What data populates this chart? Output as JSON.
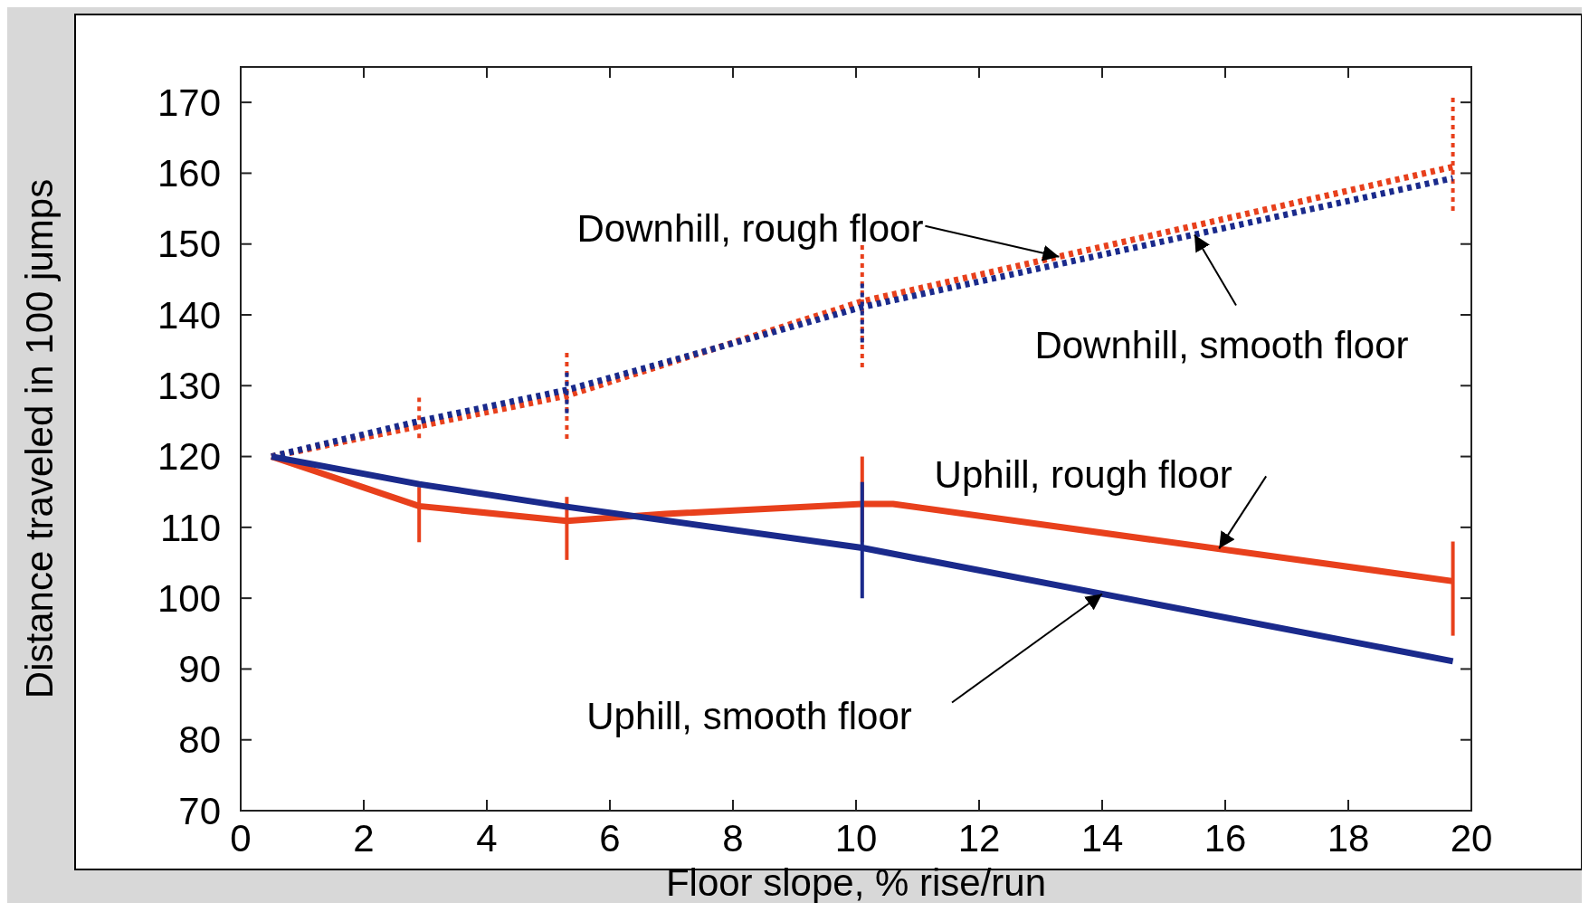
{
  "chart_data": {
    "type": "line",
    "xlabel": "Floor slope, % rise/run",
    "ylabel": "Distance traveled in 100 jumps",
    "xlim": [
      0,
      20
    ],
    "ylim": [
      70,
      175
    ],
    "xticks": [
      0,
      2,
      4,
      6,
      8,
      10,
      12,
      14,
      16,
      18,
      20
    ],
    "yticks": [
      70,
      80,
      90,
      100,
      110,
      120,
      130,
      140,
      150,
      160,
      170
    ],
    "grid": false,
    "marker": "none",
    "series": [
      {
        "color": "#e8401c",
        "line_style": "dotted",
        "x": [
          0.5,
          2.9,
          5.3,
          10.1,
          19.7
        ],
        "values": [
          120,
          124.3,
          128.6,
          141.9,
          160.9
        ],
        "errors": [
          null,
          [
            122.6,
            128.3
          ],
          [
            122.5,
            134.7
          ],
          [
            132.6,
            150.1
          ],
          [
            154.7,
            170.7
          ]
        ]
      },
      {
        "color": "#1a2a8c",
        "line_style": "dotted",
        "x": [
          0.5,
          2.9,
          5.3,
          10.1,
          19.7
        ],
        "values": [
          120,
          125,
          129.4,
          141.1,
          159.3
        ],
        "errors": [
          null,
          null,
          [
            126.1,
            132.1
          ],
          [
            136.1,
            145
          ],
          null
        ]
      },
      {
        "color": "#e8401c",
        "line_style": "solid",
        "x": [
          0.5,
          2.9,
          5.3,
          6.9,
          10.1,
          10.6,
          19.7
        ],
        "values": [
          120,
          113,
          110.9,
          111.9,
          113.3,
          113.3,
          102.4
        ],
        "errors": [
          null,
          [
            107.9,
            115.7
          ],
          [
            105.4,
            114.3
          ],
          null,
          [
            107.9,
            120
          ],
          null,
          [
            94.7,
            108
          ]
        ]
      },
      {
        "color": "#1a2a8c",
        "line_style": "solid",
        "x": [
          0.5,
          2.9,
          5.3,
          10.1,
          19.7
        ],
        "values": [
          120,
          116.1,
          112.9,
          107.1,
          91.1
        ],
        "errors": [
          null,
          null,
          null,
          [
            100,
            116.4
          ],
          null
        ]
      }
    ],
    "annotations": [
      {
        "text": "Downhill, rough floor",
        "x": 13.3,
        "y": 148.2
      },
      {
        "text": "Downhill, smooth floor",
        "x": 15.5,
        "y": 151.3
      },
      {
        "text": "Uphill, rough floor",
        "x": 15.9,
        "y": 107
      },
      {
        "text": "Uphill, smooth floor",
        "x": 14,
        "y": 100.6
      }
    ]
  }
}
